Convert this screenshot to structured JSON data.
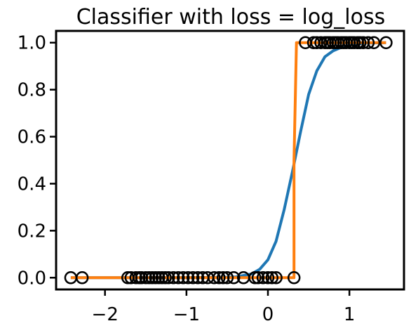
{
  "chart_data": {
    "type": "scatter",
    "title": "Classifier with loss = log_loss",
    "xlabel": "",
    "ylabel": "",
    "xlim": [
      -2.6,
      1.67
    ],
    "ylim": [
      -0.05,
      1.05
    ],
    "xticks": [
      -2,
      -1,
      0,
      1
    ],
    "xtick_labels": [
      "−2",
      "−1",
      "0",
      "1"
    ],
    "yticks": [
      0.0,
      0.2,
      0.4,
      0.6,
      0.8,
      1.0
    ],
    "ytick_labels": [
      "0.0",
      "0.2",
      "0.4",
      "0.6",
      "0.8",
      "1.0"
    ],
    "grid": false,
    "legend": "none",
    "points": {
      "marker": "open-circle",
      "color": "#000000",
      "x0": [
        -2.42,
        -2.28,
        -1.72,
        -1.68,
        -1.62,
        -1.58,
        -1.55,
        -1.5,
        -1.46,
        -1.42,
        -1.38,
        -1.34,
        -1.3,
        -1.26,
        -1.22,
        -1.16,
        -1.1,
        -1.04,
        -0.98,
        -0.92,
        -0.86,
        -0.8,
        -0.74,
        -0.66,
        -0.6,
        -0.55,
        -0.5,
        -0.42,
        -0.3,
        -0.16,
        -0.12,
        -0.06,
        0.0,
        0.05,
        0.1,
        0.32
      ],
      "x1": [
        0.46,
        0.56,
        0.6,
        0.65,
        0.7,
        0.73,
        0.76,
        0.8,
        0.83,
        0.86,
        0.9,
        0.93,
        0.96,
        1.0,
        1.03,
        1.06,
        1.1,
        1.13,
        1.17,
        1.23,
        1.3,
        1.45
      ]
    },
    "series": [
      {
        "kind": "logistic-curve",
        "color": "#1f77b4",
        "x": [
          -2.42,
          -2.0,
          -1.5,
          -1.0,
          -0.6,
          -0.4,
          -0.2,
          -0.1,
          0.0,
          0.1,
          0.2,
          0.3,
          0.33,
          0.4,
          0.5,
          0.6,
          0.7,
          0.8,
          0.9,
          1.0,
          1.1,
          1.2,
          1.45
        ],
        "y": [
          0.0,
          0.0,
          0.0,
          0.0,
          0.001,
          0.003,
          0.016,
          0.036,
          0.076,
          0.155,
          0.29,
          0.45,
          0.5,
          0.62,
          0.78,
          0.88,
          0.94,
          0.965,
          0.98,
          0.99,
          0.995,
          0.998,
          1.0
        ]
      },
      {
        "kind": "step",
        "color": "#ff7f0e",
        "x": [
          -2.42,
          0.32,
          0.32,
          0.35,
          1.45
        ],
        "y": [
          0.0,
          0.0,
          0.5,
          1.0,
          1.0
        ]
      }
    ]
  }
}
